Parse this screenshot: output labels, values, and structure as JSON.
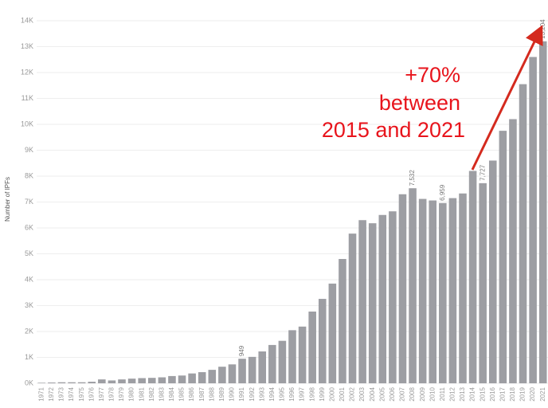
{
  "chart_data": {
    "type": "bar",
    "y_label": "Number of IPFs",
    "annotation": [
      "+70%",
      "between",
      "2015 and 2021"
    ],
    "annotation_color": "#e8141c",
    "color": "#9d9ea3",
    "grid": true,
    "categories": [
      "1971",
      "1972",
      "1973",
      "1974",
      "1975",
      "1976",
      "1977",
      "1978",
      "1979",
      "1980",
      "1981",
      "1982",
      "1983",
      "1984",
      "1985",
      "1986",
      "1987",
      "1988",
      "1989",
      "1990",
      "1991",
      "1992",
      "1993",
      "1994",
      "1995",
      "1996",
      "1997",
      "1998",
      "1999",
      "2000",
      "2001",
      "2002",
      "2003",
      "2004",
      "2005",
      "2006",
      "2007",
      "2008",
      "2009",
      "2010",
      "2011",
      "2012",
      "2013",
      "2014",
      "2015",
      "2016",
      "2017",
      "2018",
      "2019",
      "2020",
      "2021"
    ],
    "values": [
      20,
      30,
      40,
      40,
      40,
      60,
      150,
      110,
      150,
      180,
      200,
      210,
      230,
      280,
      300,
      380,
      430,
      520,
      640,
      730,
      949,
      1020,
      1230,
      1480,
      1640,
      2050,
      2190,
      2770,
      3260,
      3850,
      4800,
      5780,
      6300,
      6180,
      6500,
      6640,
      7300,
      7532,
      7120,
      7060,
      6959,
      7150,
      7330,
      8200,
      7727,
      8600,
      9750,
      10200,
      11550,
      12600,
      13204
    ],
    "value_labels": [
      null,
      null,
      null,
      null,
      null,
      null,
      null,
      null,
      null,
      null,
      null,
      null,
      null,
      null,
      null,
      null,
      null,
      null,
      null,
      null,
      "949",
      null,
      null,
      null,
      null,
      null,
      null,
      null,
      null,
      null,
      null,
      null,
      null,
      null,
      null,
      null,
      null,
      "7,532",
      null,
      null,
      "6,959",
      null,
      null,
      null,
      "7,727",
      null,
      null,
      null,
      null,
      null,
      "13,204"
    ],
    "ylim": [
      0,
      14000
    ],
    "yticks": [
      {
        "value": 0,
        "label": "0K"
      },
      {
        "value": 1000,
        "label": "1K"
      },
      {
        "value": 2000,
        "label": "2K"
      },
      {
        "value": 3000,
        "label": "3K"
      },
      {
        "value": 4000,
        "label": "4K"
      },
      {
        "value": 5000,
        "label": "5K"
      },
      {
        "value": 6000,
        "label": "6K"
      },
      {
        "value": 7000,
        "label": "7K"
      },
      {
        "value": 8000,
        "label": "8K"
      },
      {
        "value": 9000,
        "label": "9K"
      },
      {
        "value": 10000,
        "label": "10K"
      },
      {
        "value": 11000,
        "label": "11K"
      },
      {
        "value": 12000,
        "label": "12K"
      },
      {
        "value": 13000,
        "label": "13K"
      },
      {
        "value": 14000,
        "label": "14K"
      }
    ]
  }
}
